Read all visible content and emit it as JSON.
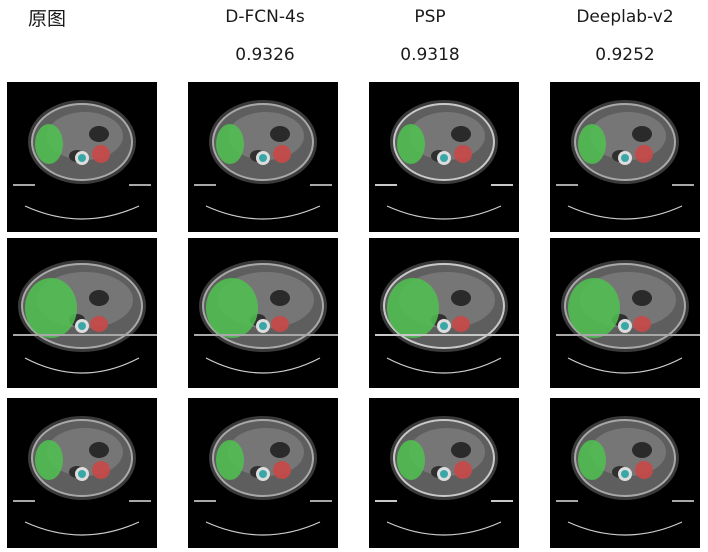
{
  "header": {
    "original_label": "原图",
    "columns": [
      {
        "title": "D-FCN-4s",
        "score": "0.9326"
      },
      {
        "title": "PSP",
        "score": "0.9318"
      },
      {
        "title": "Deeplab-v2",
        "score": "0.9252"
      }
    ]
  },
  "colors": {
    "liver_overlay": "#4fc24f",
    "kidney_overlay": "#c94848",
    "spine_overlay": "#3aa7a7",
    "background": "#000000",
    "tissue": "#8a8a8a"
  }
}
